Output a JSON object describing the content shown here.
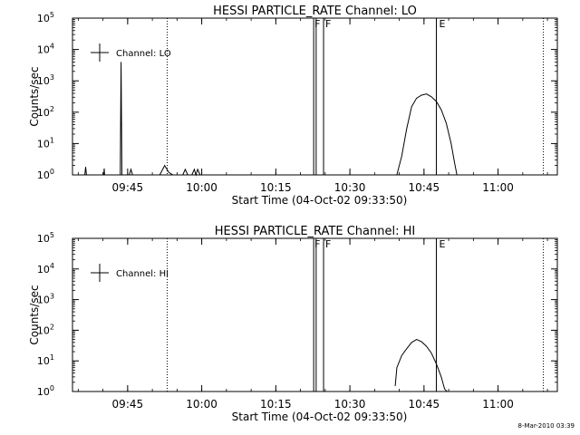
{
  "footer": {
    "timestamp": "8-Mar-2010 03:39"
  },
  "chart_data": [
    {
      "type": "line",
      "title": "HESSI PARTICLE_RATE Channel: LO",
      "xlabel": "Start Time (04-Oct-02 09:33:50)",
      "ylabel": "Counts/sec",
      "yscale": "log",
      "ylim": [
        1,
        100000
      ],
      "xlim": [
        "09:33:50",
        "11:12:00"
      ],
      "xticks": [
        "09:45",
        "10:00",
        "10:15",
        "10:30",
        "10:45",
        "11:00"
      ],
      "yticks": [
        "10^0",
        "10^1",
        "10^2",
        "10^3",
        "10^4",
        "10^5"
      ],
      "legend": {
        "label": "Channel: LO",
        "position": "top-left"
      },
      "annotations": [
        "F",
        "F",
        "E"
      ],
      "series": [
        {
          "name": "Channel: LO",
          "points": [
            [
              "09:36:20",
              0.1
            ],
            [
              "09:36:30",
              1.8
            ],
            [
              "09:36:40",
              0.1
            ],
            [
              "09:40:10",
              0.1
            ],
            [
              "09:40:15",
              1.6
            ],
            [
              "09:40:20",
              0.1
            ],
            [
              "09:43:30",
              0.1
            ],
            [
              "09:43:40",
              4000
            ],
            [
              "09:43:50",
              0.1
            ],
            [
              "09:45:20",
              0.1
            ],
            [
              "09:45:40",
              1.5
            ],
            [
              "09:46:00",
              0.1
            ],
            [
              "09:51:30",
              0.1
            ],
            [
              "09:52:30",
              2.0
            ],
            [
              "09:53:20",
              1.2
            ],
            [
              "09:54:10",
              0.1
            ],
            [
              "09:56:10",
              0.1
            ],
            [
              "09:56:40",
              1.5
            ],
            [
              "09:57:10",
              0.1
            ],
            [
              "09:58:00",
              0.1
            ],
            [
              "09:58:30",
              1.5
            ],
            [
              "09:58:50",
              0.5
            ],
            [
              "09:59:10",
              1.5
            ],
            [
              "09:59:40",
              0.1
            ],
            [
              "10:38:40",
              0.1
            ],
            [
              "10:39:30",
              1.0
            ],
            [
              "10:40:30",
              4
            ],
            [
              "10:41:30",
              30
            ],
            [
              "10:42:30",
              150
            ],
            [
              "10:43:30",
              280
            ],
            [
              "10:44:30",
              350
            ],
            [
              "10:45:30",
              380
            ],
            [
              "10:46:30",
              310
            ],
            [
              "10:47:30",
              220
            ],
            [
              "10:48:30",
              120
            ],
            [
              "10:49:30",
              45
            ],
            [
              "10:50:30",
              10
            ],
            [
              "10:51:10",
              2.5
            ],
            [
              "10:51:40",
              1.0
            ],
            [
              "10:52:10",
              0.1
            ]
          ]
        }
      ],
      "vertical_markers": [
        {
          "time": "09:53:00",
          "style": "dotted"
        },
        {
          "time": "10:22:40",
          "style": "solid"
        },
        {
          "time": "10:23:10",
          "style": "solid"
        },
        {
          "time": "10:24:40",
          "style": "solid"
        },
        {
          "time": "10:47:30",
          "style": "solid"
        },
        {
          "time": "11:09:10",
          "style": "dotted"
        }
      ]
    },
    {
      "type": "line",
      "title": "HESSI PARTICLE_RATE Channel: HI",
      "xlabel": "Start Time (04-Oct-02 09:33:50)",
      "ylabel": "Counts/sec",
      "yscale": "log",
      "ylim": [
        1,
        100000
      ],
      "xlim": [
        "09:33:50",
        "11:12:00"
      ],
      "xticks": [
        "09:45",
        "10:00",
        "10:15",
        "10:30",
        "10:45",
        "11:00"
      ],
      "yticks": [
        "10^0",
        "10^1",
        "10^2",
        "10^3",
        "10^4",
        "10^5"
      ],
      "legend": {
        "label": "Channel: HI",
        "position": "top-left"
      },
      "annotations": [
        "F",
        "F",
        "E"
      ],
      "series": [
        {
          "name": "Channel: HI",
          "points": [
            [
              "10:39:10",
              1.5
            ],
            [
              "10:39:30",
              6
            ],
            [
              "10:40:30",
              15
            ],
            [
              "10:41:30",
              25
            ],
            [
              "10:42:30",
              40
            ],
            [
              "10:43:30",
              50
            ],
            [
              "10:44:30",
              42
            ],
            [
              "10:45:30",
              30
            ],
            [
              "10:46:30",
              18
            ],
            [
              "10:47:30",
              8
            ],
            [
              "10:48:30",
              3
            ],
            [
              "10:49:10",
              1.2
            ],
            [
              "10:49:40",
              0.1
            ]
          ]
        }
      ],
      "vertical_markers": [
        {
          "time": "09:53:00",
          "style": "dotted"
        },
        {
          "time": "10:22:40",
          "style": "solid"
        },
        {
          "time": "10:23:10",
          "style": "solid"
        },
        {
          "time": "10:24:40",
          "style": "solid"
        },
        {
          "time": "10:47:30",
          "style": "solid"
        },
        {
          "time": "11:09:10",
          "style": "dotted"
        }
      ]
    }
  ]
}
